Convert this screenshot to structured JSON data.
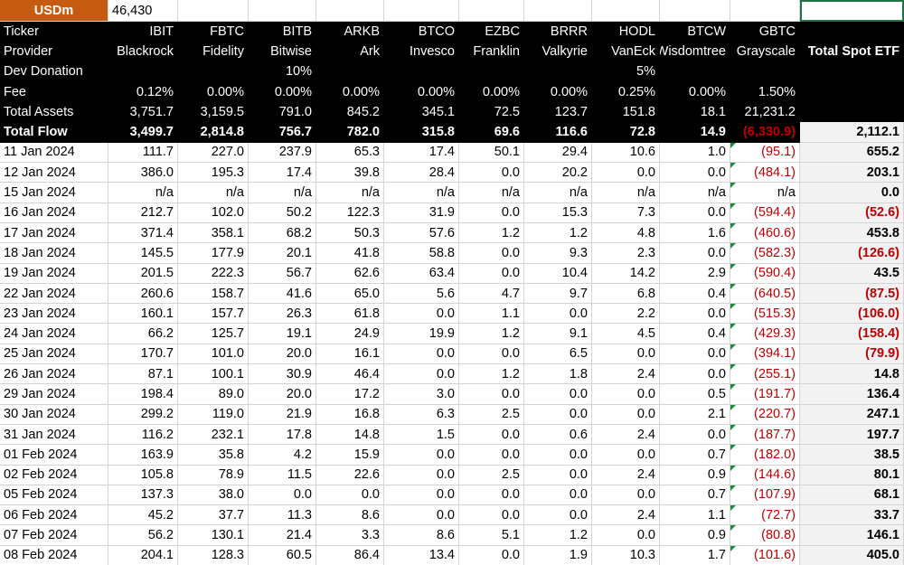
{
  "sheet": {
    "unit_label": "USDm",
    "unit_value": "46,430",
    "row_labels": {
      "ticker": "Ticker",
      "provider": "Provider",
      "dev_donation": "Dev Donation",
      "fee": "Fee",
      "total_assets": "Total Assets",
      "total_flow": "Total Flow"
    },
    "columns": [
      {
        "ticker": "IBIT",
        "provider": "Blackrock",
        "fee": "0.12%",
        "total_assets": "3,751.7",
        "total_flow": "3,499.7"
      },
      {
        "ticker": "FBTC",
        "provider": "Fidelity",
        "fee": "0.00%",
        "total_assets": "3,159.5",
        "total_flow": "2,814.8"
      },
      {
        "ticker": "BITB",
        "provider": "Bitwise",
        "dev_donation": "10%",
        "fee": "0.00%",
        "total_assets": "791.0",
        "total_flow": "756.7"
      },
      {
        "ticker": "ARKB",
        "provider": "Ark",
        "fee": "0.00%",
        "total_assets": "845.2",
        "total_flow": "782.0"
      },
      {
        "ticker": "BTCO",
        "provider": "Invesco",
        "fee": "0.00%",
        "total_assets": "345.1",
        "total_flow": "315.8"
      },
      {
        "ticker": "EZBC",
        "provider": "Franklin",
        "fee": "0.00%",
        "total_assets": "72.5",
        "total_flow": "69.6"
      },
      {
        "ticker": "BRRR",
        "provider": "Valkyrie",
        "fee": "0.00%",
        "total_assets": "123.7",
        "total_flow": "116.6"
      },
      {
        "ticker": "HODL",
        "provider": "VanEck",
        "dev_donation": "5%",
        "fee": "0.25%",
        "total_assets": "151.8",
        "total_flow": "72.8"
      },
      {
        "ticker": "BTCW",
        "provider": "Wisdomtree",
        "fee": "0.00%",
        "total_assets": "18.1",
        "total_flow": "14.9"
      },
      {
        "ticker": "GBTC",
        "provider": "Grayscale",
        "fee": "1.50%",
        "total_assets": "21,231.2",
        "total_flow": "(6,330.9)"
      }
    ],
    "total_column": {
      "header": "Total Spot ETF",
      "total_flow": "2,112.1"
    },
    "rows": [
      {
        "date": "11 Jan 2024",
        "values": [
          "111.7",
          "227.0",
          "237.9",
          "65.3",
          "17.4",
          "50.1",
          "29.4",
          "10.6",
          "1.0",
          "(95.1)"
        ],
        "total": "655.2"
      },
      {
        "date": "12 Jan 2024",
        "values": [
          "386.0",
          "195.3",
          "17.4",
          "39.8",
          "28.4",
          "0.0",
          "20.2",
          "0.0",
          "0.0",
          "(484.1)"
        ],
        "total": "203.1"
      },
      {
        "date": "15 Jan 2024",
        "values": [
          "n/a",
          "n/a",
          "n/a",
          "n/a",
          "n/a",
          "n/a",
          "n/a",
          "n/a",
          "n/a",
          "n/a"
        ],
        "total": "0.0"
      },
      {
        "date": "16 Jan 2024",
        "values": [
          "212.7",
          "102.0",
          "50.2",
          "122.3",
          "31.9",
          "0.0",
          "15.3",
          "7.3",
          "0.0",
          "(594.4)"
        ],
        "total": "(52.6)"
      },
      {
        "date": "17 Jan 2024",
        "values": [
          "371.4",
          "358.1",
          "68.2",
          "50.3",
          "57.6",
          "1.2",
          "1.2",
          "4.8",
          "1.6",
          "(460.6)"
        ],
        "total": "453.8"
      },
      {
        "date": "18 Jan 2024",
        "values": [
          "145.5",
          "177.9",
          "20.1",
          "41.8",
          "58.8",
          "0.0",
          "9.3",
          "2.3",
          "0.0",
          "(582.3)"
        ],
        "total": "(126.6)"
      },
      {
        "date": "19 Jan 2024",
        "values": [
          "201.5",
          "222.3",
          "56.7",
          "62.6",
          "63.4",
          "0.0",
          "10.4",
          "14.2",
          "2.9",
          "(590.4)"
        ],
        "total": "43.5"
      },
      {
        "date": "22 Jan 2024",
        "values": [
          "260.6",
          "158.7",
          "41.6",
          "65.0",
          "5.6",
          "4.7",
          "9.7",
          "6.8",
          "0.4",
          "(640.5)"
        ],
        "total": "(87.5)"
      },
      {
        "date": "23 Jan 2024",
        "values": [
          "160.1",
          "157.7",
          "26.3",
          "61.8",
          "0.0",
          "1.1",
          "0.0",
          "2.2",
          "0.0",
          "(515.3)"
        ],
        "total": "(106.0)"
      },
      {
        "date": "24 Jan 2024",
        "values": [
          "66.2",
          "125.7",
          "19.1",
          "24.9",
          "19.9",
          "1.2",
          "9.1",
          "4.5",
          "0.4",
          "(429.3)"
        ],
        "total": "(158.4)"
      },
      {
        "date": "25 Jan 2024",
        "values": [
          "170.7",
          "101.0",
          "20.0",
          "16.1",
          "0.0",
          "0.0",
          "6.5",
          "0.0",
          "0.0",
          "(394.1)"
        ],
        "total": "(79.9)"
      },
      {
        "date": "26 Jan 2024",
        "values": [
          "87.1",
          "100.1",
          "30.9",
          "46.4",
          "0.0",
          "1.2",
          "1.8",
          "2.4",
          "0.0",
          "(255.1)"
        ],
        "total": "14.8"
      },
      {
        "date": "29 Jan 2024",
        "values": [
          "198.4",
          "89.0",
          "20.0",
          "17.2",
          "3.0",
          "0.0",
          "0.0",
          "0.0",
          "0.5",
          "(191.7)"
        ],
        "total": "136.4"
      },
      {
        "date": "30 Jan 2024",
        "values": [
          "299.2",
          "119.0",
          "21.9",
          "16.8",
          "6.3",
          "2.5",
          "0.0",
          "0.0",
          "2.1",
          "(220.7)"
        ],
        "total": "247.1"
      },
      {
        "date": "31 Jan 2024",
        "values": [
          "116.2",
          "232.1",
          "17.8",
          "14.8",
          "1.5",
          "0.0",
          "0.6",
          "2.4",
          "0.0",
          "(187.7)"
        ],
        "total": "197.7"
      },
      {
        "date": "01 Feb 2024",
        "values": [
          "163.9",
          "35.8",
          "4.2",
          "15.9",
          "0.0",
          "0.0",
          "0.0",
          "0.0",
          "0.7",
          "(182.0)"
        ],
        "total": "38.5"
      },
      {
        "date": "02 Feb 2024",
        "values": [
          "105.8",
          "78.9",
          "11.5",
          "22.6",
          "0.0",
          "2.5",
          "0.0",
          "2.4",
          "0.9",
          "(144.6)"
        ],
        "total": "80.1"
      },
      {
        "date": "05 Feb 2024",
        "values": [
          "137.3",
          "38.0",
          "0.0",
          "0.0",
          "0.0",
          "0.0",
          "0.0",
          "0.0",
          "0.7",
          "(107.9)"
        ],
        "total": "68.1"
      },
      {
        "date": "06 Feb 2024",
        "values": [
          "45.2",
          "37.7",
          "11.3",
          "8.6",
          "0.0",
          "0.0",
          "0.0",
          "2.4",
          "1.1",
          "(72.7)"
        ],
        "total": "33.7"
      },
      {
        "date": "07 Feb 2024",
        "values": [
          "56.2",
          "130.1",
          "21.4",
          "3.3",
          "8.6",
          "5.1",
          "1.2",
          "0.0",
          "0.9",
          "(80.8)"
        ],
        "total": "146.1"
      },
      {
        "date": "08 Feb 2024",
        "values": [
          "204.1",
          "128.3",
          "60.5",
          "86.4",
          "13.4",
          "0.0",
          "1.9",
          "10.3",
          "1.7",
          "(101.6)"
        ],
        "total": "405.0"
      }
    ]
  }
}
